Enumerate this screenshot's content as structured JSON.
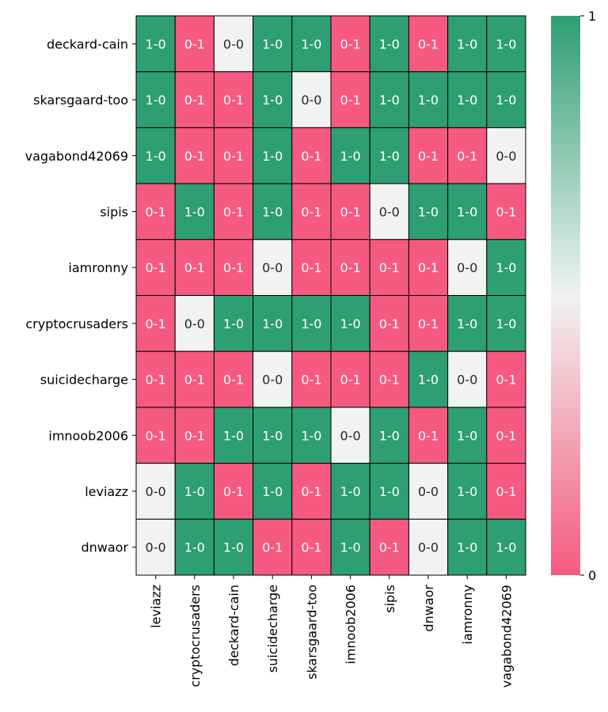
{
  "chart_data": {
    "type": "heatmap",
    "rows": [
      "deckard-cain",
      "skarsgaard-too",
      "vagabond42069",
      "sipis",
      "iamronny",
      "cryptocrusaders",
      "suicidecharge",
      "imnoob2006",
      "leviazz",
      "dnwaor"
    ],
    "columns": [
      "leviazz",
      "cryptocrusaders",
      "deckard-cain",
      "suicidecharge",
      "skarsgaard-too",
      "imnoob2006",
      "sipis",
      "dnwaor",
      "iamronny",
      "vagabond42069"
    ],
    "values": [
      [
        1,
        0,
        0.5,
        1,
        1,
        0,
        1,
        0,
        1,
        1
      ],
      [
        1,
        0,
        0,
        1,
        0.5,
        0,
        1,
        1,
        1,
        1
      ],
      [
        1,
        0,
        0,
        1,
        0,
        1,
        1,
        0,
        0,
        0.5
      ],
      [
        0,
        1,
        0,
        1,
        0,
        0,
        0.5,
        1,
        1,
        0
      ],
      [
        0,
        0,
        0,
        0.5,
        0,
        0,
        0,
        0,
        0.5,
        1
      ],
      [
        0,
        0.5,
        1,
        1,
        1,
        1,
        0,
        0,
        1,
        1
      ],
      [
        0,
        0,
        0,
        0.5,
        0,
        0,
        0,
        1,
        0.5,
        0
      ],
      [
        0,
        0,
        1,
        1,
        1,
        0.5,
        1,
        0,
        1,
        0
      ],
      [
        0.5,
        1,
        0,
        1,
        0,
        1,
        1,
        0.5,
        1,
        0
      ],
      [
        0.5,
        1,
        1,
        0,
        0,
        1,
        0,
        0.5,
        1,
        1
      ]
    ],
    "annotations": [
      [
        "1-0",
        "0-1",
        "0-0",
        "1-0",
        "1-0",
        "0-1",
        "1-0",
        "0-1",
        "1-0",
        "1-0"
      ],
      [
        "1-0",
        "0-1",
        "0-1",
        "1-0",
        "0-0",
        "0-1",
        "1-0",
        "1-0",
        "1-0",
        "1-0"
      ],
      [
        "1-0",
        "0-1",
        "0-1",
        "1-0",
        "0-1",
        "1-0",
        "1-0",
        "0-1",
        "0-1",
        "0-0"
      ],
      [
        "0-1",
        "1-0",
        "0-1",
        "1-0",
        "0-1",
        "0-1",
        "0-0",
        "1-0",
        "1-0",
        "0-1"
      ],
      [
        "0-1",
        "0-1",
        "0-1",
        "0-0",
        "0-1",
        "0-1",
        "0-1",
        "0-1",
        "0-0",
        "1-0"
      ],
      [
        "0-1",
        "0-0",
        "1-0",
        "1-0",
        "1-0",
        "1-0",
        "0-1",
        "0-1",
        "1-0",
        "1-0"
      ],
      [
        "0-1",
        "0-1",
        "0-1",
        "0-0",
        "0-1",
        "0-1",
        "0-1",
        "1-0",
        "0-0",
        "0-1"
      ],
      [
        "0-1",
        "0-1",
        "1-0",
        "1-0",
        "1-0",
        "0-0",
        "1-0",
        "0-1",
        "1-0",
        "0-1"
      ],
      [
        "0-0",
        "1-0",
        "0-1",
        "1-0",
        "0-1",
        "1-0",
        "1-0",
        "0-0",
        "1-0",
        "0-1"
      ],
      [
        "0-0",
        "1-0",
        "1-0",
        "0-1",
        "0-1",
        "1-0",
        "0-1",
        "0-0",
        "1-0",
        "1-0"
      ]
    ],
    "colorbar": {
      "min": 0,
      "max": 1,
      "ticks": [
        "0",
        "1"
      ]
    },
    "colors": {
      "low": "#f65a80",
      "mid": "#f0f3f1",
      "high": "#2e9e73"
    }
  }
}
